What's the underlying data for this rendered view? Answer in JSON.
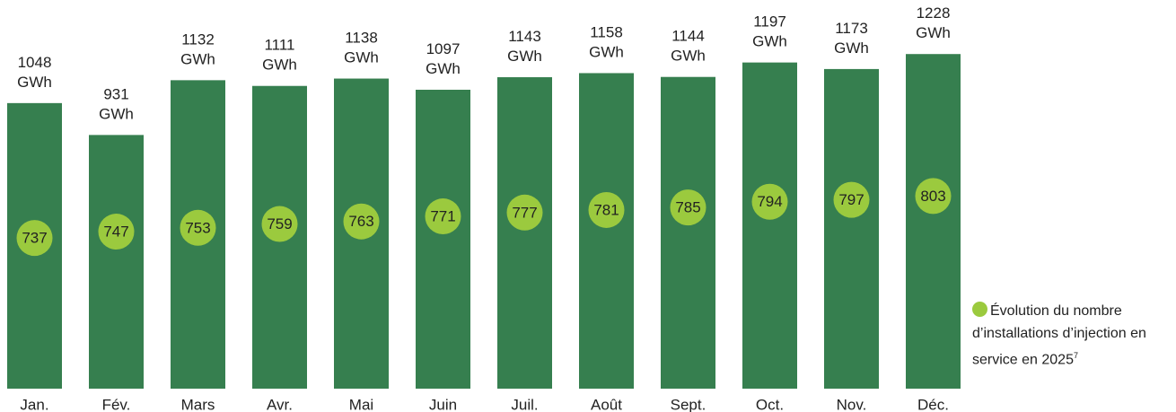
{
  "chart_data": {
    "type": "bar",
    "categories": [
      "Jan.",
      "Fév.",
      "Mars",
      "Avr.",
      "Mai",
      "Juin",
      "Juil.",
      "Août",
      "Sept.",
      "Oct.",
      "Nov.",
      "Déc."
    ],
    "series": [
      {
        "color": "#367f4f",
        "values": [
          1048,
          931,
          1132,
          1111,
          1138,
          1097,
          1143,
          1158,
          1144,
          1197,
          1173,
          1228
        ],
        "value_labels": [
          "1048 GWh",
          "931 GWh",
          "1132 GWh",
          "1111 GWh",
          "1138 GWh",
          "1097 GWh",
          "1143 GWh",
          "1158 GWh",
          "1144 GWh",
          "1197 GWh",
          "1173 GWh",
          "1228 GWh"
        ]
      },
      {
        "name": "Évolution du nombre d’installations d’injection en service en 2025",
        "footnote": "7",
        "color": "#9bca3e",
        "type": "scatter",
        "axis": "y2",
        "values": [
          737,
          747,
          753,
          759,
          763,
          771,
          777,
          781,
          785,
          794,
          797,
          803
        ]
      }
    ],
    "ylim": [
      0,
      1400
    ],
    "y2lim": [
      500,
      1100
    ]
  }
}
